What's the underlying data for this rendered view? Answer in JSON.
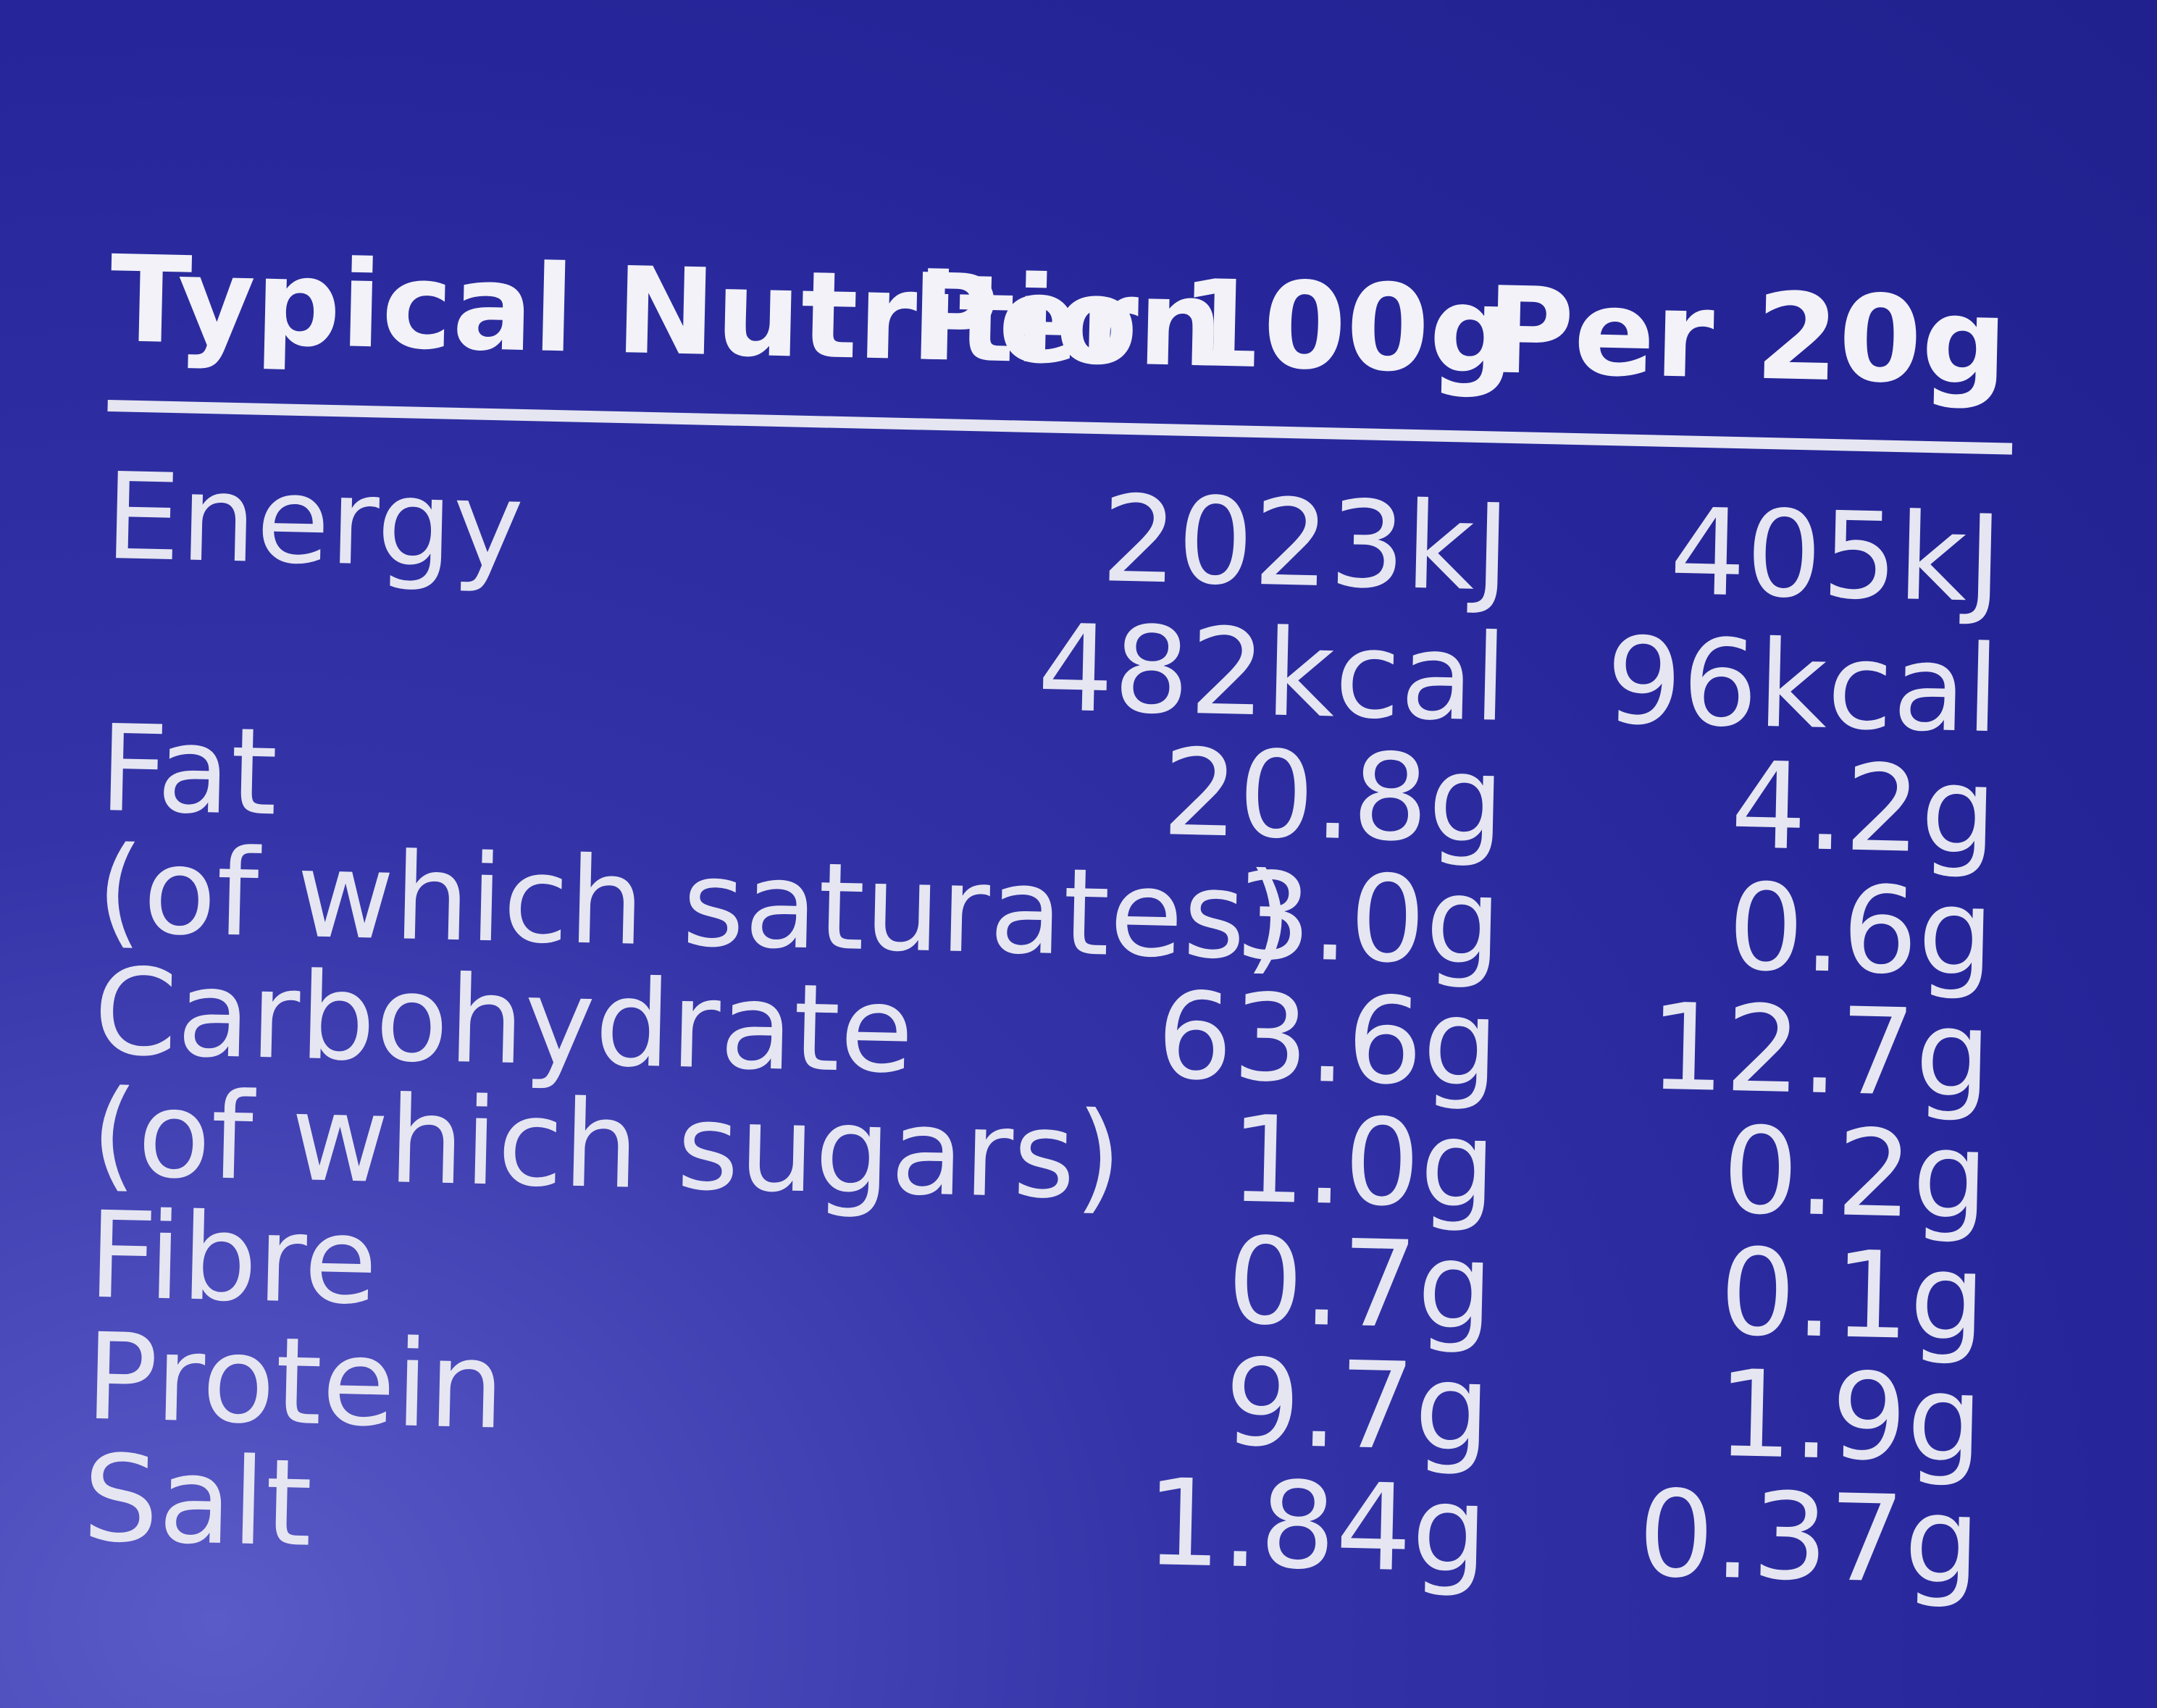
{
  "header": {
    "title": "Typical Nutrition",
    "columns": [
      "Per 100g",
      "Per 20g"
    ]
  },
  "table": {
    "rows": [
      {
        "label": "Energy",
        "values": [
          "2023kJ",
          "405kJ"
        ],
        "extra": [
          "482kcal",
          "96kcal"
        ]
      },
      {
        "label": "Fat",
        "values": [
          "20.8g",
          "4.2g"
        ]
      },
      {
        "label": "(of which saturates)",
        "values": [
          "3.0g",
          "0.6g"
        ]
      },
      {
        "label": "Carbohydrate",
        "values": [
          "63.6g",
          "12.7g"
        ]
      },
      {
        "label": "(of which sugars)",
        "values": [
          "1.0g",
          "0.2g"
        ]
      },
      {
        "label": "Fibre",
        "values": [
          "0.7g",
          "0.1g"
        ]
      },
      {
        "label": "Protein",
        "values": [
          "9.7g",
          "1.9g"
        ]
      },
      {
        "label": "Salt",
        "values": [
          "1.84g",
          "0.37g"
        ]
      }
    ]
  }
}
